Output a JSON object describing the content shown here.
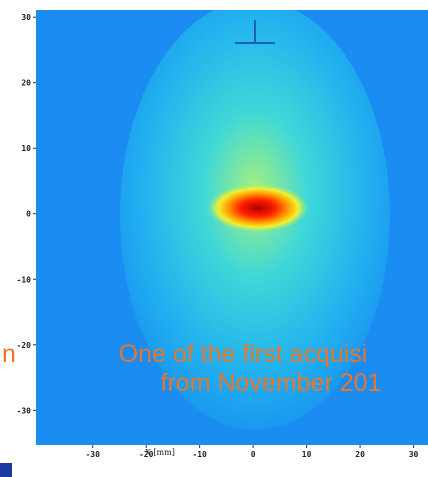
{
  "chart_data": {
    "type": "heatmap",
    "xlabel": "X [mm]",
    "xlim": [
      -40.6,
      32.7
    ],
    "ylim": [
      -35.3,
      31.1
    ],
    "xticks": [
      -30,
      -20,
      -10,
      0,
      10,
      20,
      30
    ],
    "yticks": [
      -30,
      -20,
      -10,
      0,
      10,
      20,
      30
    ],
    "annotations": [
      "One of the first acquisi",
      "from November 201",
      "n"
    ]
  }
}
